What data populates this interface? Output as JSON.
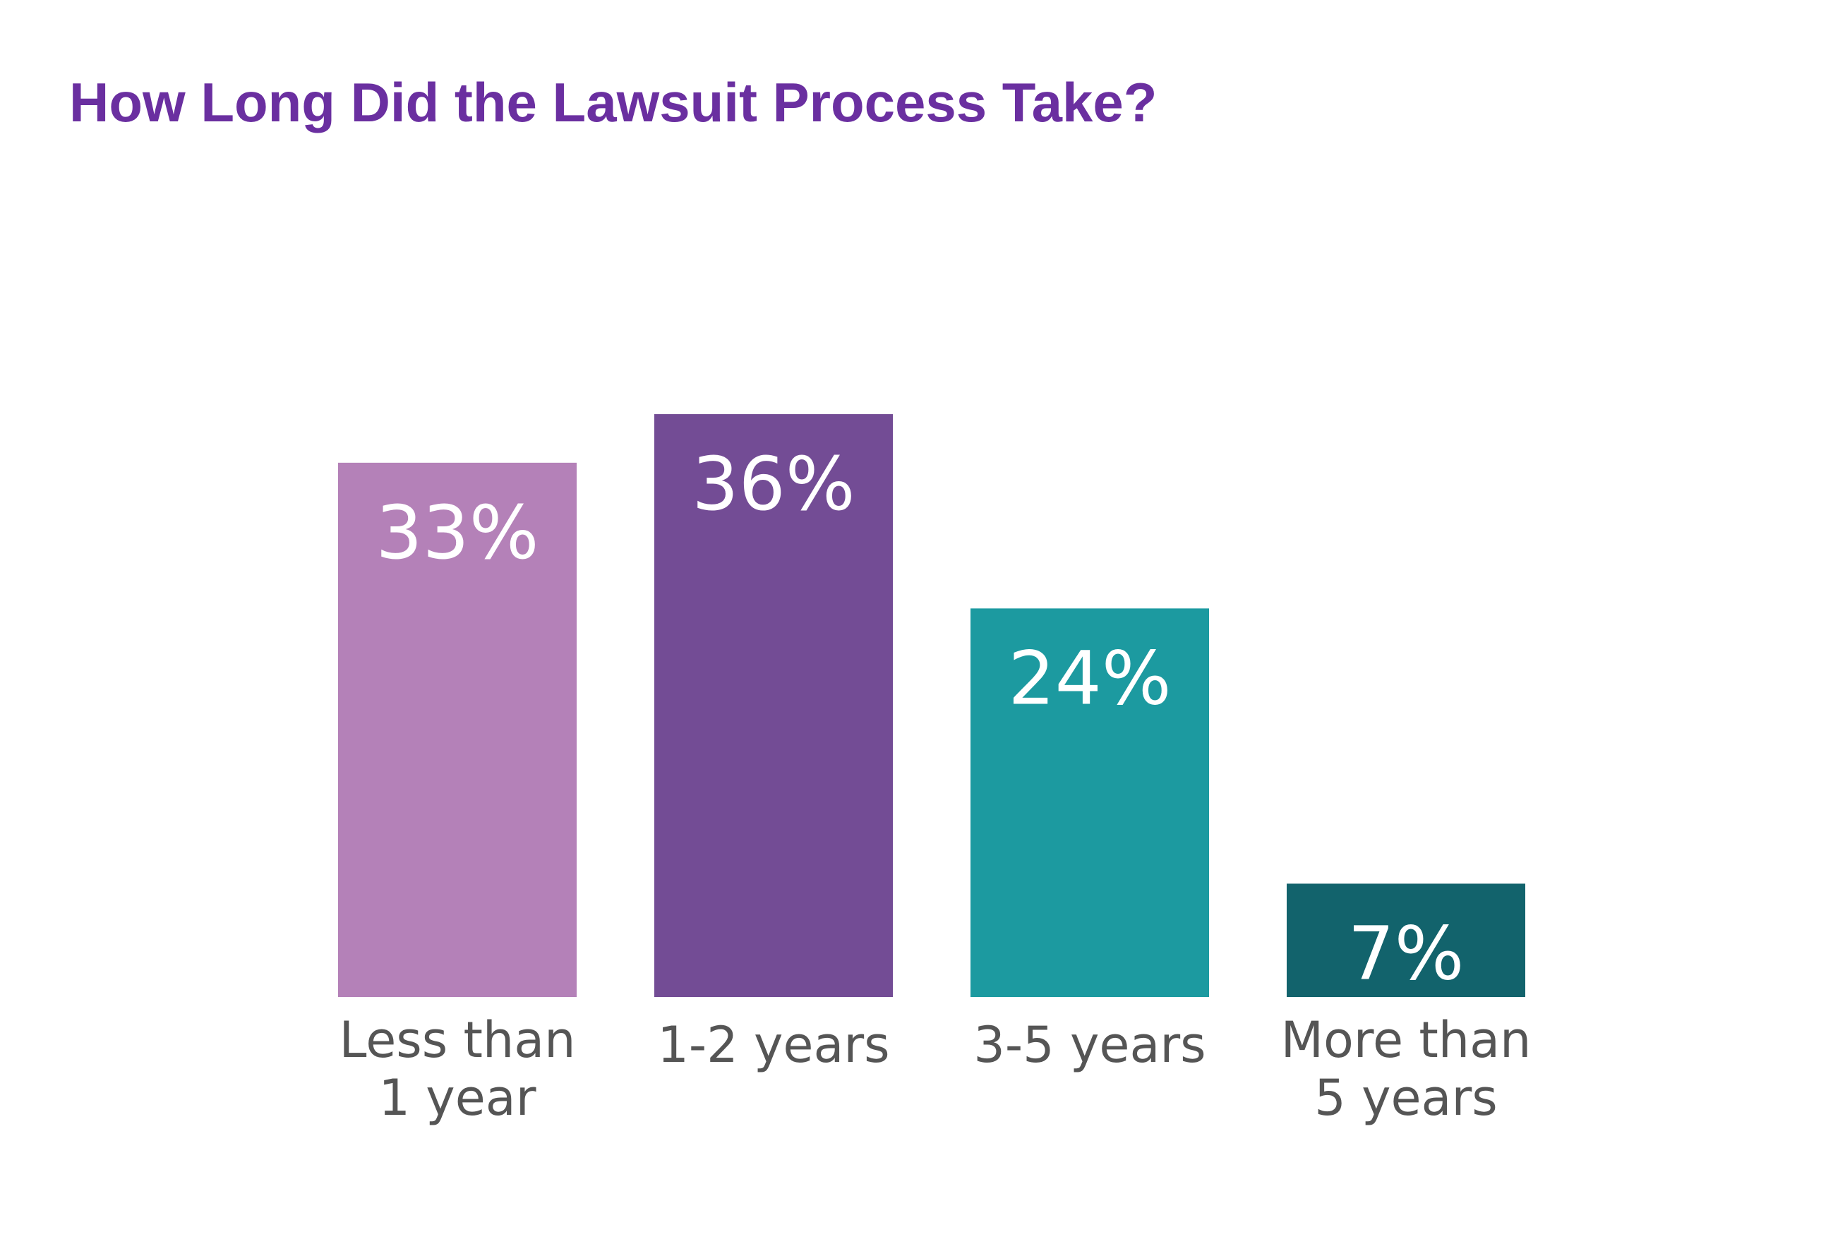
{
  "chart_data": {
    "type": "bar",
    "title": "How Long Did the Lawsuit Process Take?",
    "xlabel": "",
    "ylabel": "",
    "categories": [
      [
        "Less than",
        "1 year"
      ],
      [
        "1-2 years"
      ],
      [
        "3-5 years"
      ],
      [
        "More than",
        "5 years"
      ]
    ],
    "values": [
      33,
      36,
      24,
      7
    ],
    "value_labels": [
      "33%",
      "36%",
      "24%",
      "7%"
    ],
    "colors": [
      "#b481b8",
      "#734c95",
      "#1c9aa0",
      "#12636c"
    ],
    "ylim": [
      0,
      36
    ],
    "grid": false,
    "legend": "none"
  }
}
